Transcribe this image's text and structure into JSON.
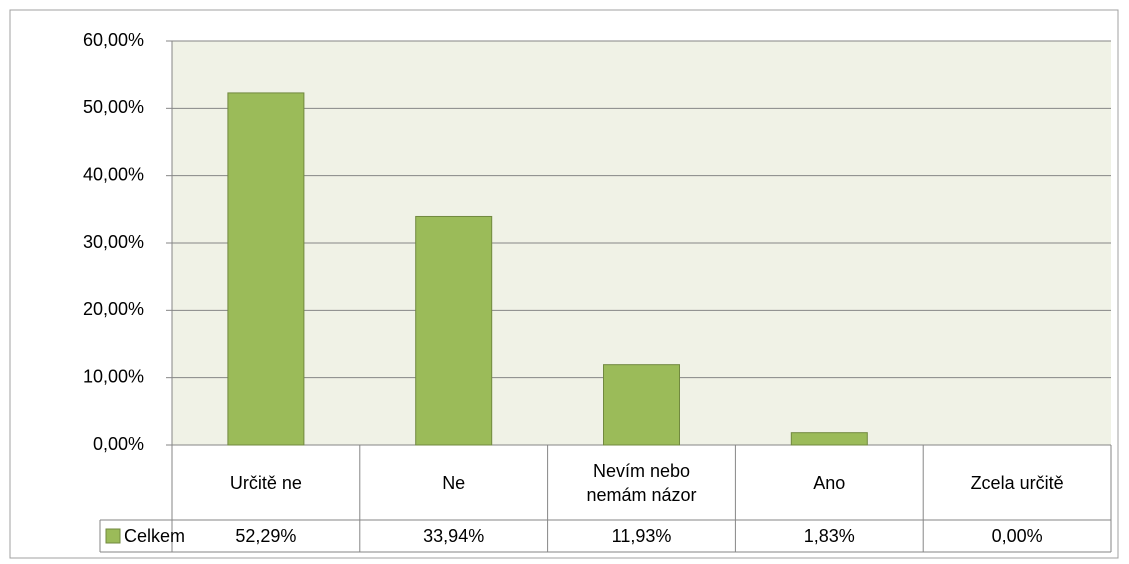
{
  "chart_data": {
    "type": "bar",
    "categories": [
      "Určitě ne",
      "Ne",
      "Nevím nebo nemám názor",
      "Ano",
      "Zcela určitě"
    ],
    "series": [
      {
        "name": "Celkem",
        "color": "#9bbb59",
        "values": [
          52.29,
          33.94,
          11.93,
          1.83,
          0.0
        ],
        "value_labels": [
          "52,29%",
          "33,94%",
          "11,93%",
          "1,83%",
          "0,00%"
        ]
      }
    ],
    "ylim": [
      0,
      60
    ],
    "yticks": [
      {
        "value": 0,
        "label": "0,00%"
      },
      {
        "value": 10,
        "label": "10,00%"
      },
      {
        "value": 20,
        "label": "20,00%"
      },
      {
        "value": 30,
        "label": "30,00%"
      },
      {
        "value": 40,
        "label": "40,00%"
      },
      {
        "value": 50,
        "label": "50,00%"
      },
      {
        "value": 60,
        "label": "60,00%"
      }
    ],
    "grid": true,
    "legend": "data-table"
  }
}
